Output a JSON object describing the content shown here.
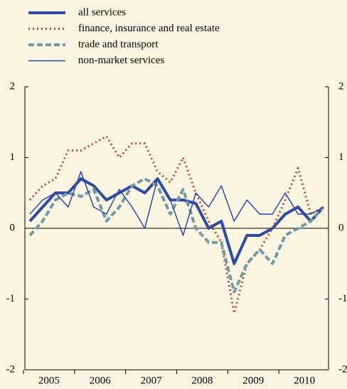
{
  "chart_data": {
    "type": "line",
    "categories": [
      "2005",
      null,
      null,
      null,
      "2006",
      null,
      null,
      null,
      "2007",
      null,
      null,
      null,
      "2008",
      null,
      null,
      null,
      "2009",
      null,
      null,
      null,
      "2010",
      null,
      null,
      null
    ],
    "series": [
      {
        "name": "all services",
        "color": "#2b4ba6",
        "line_width": 4,
        "dash": "none",
        "values": [
          0.1,
          0.3,
          0.5,
          0.5,
          0.7,
          0.6,
          0.4,
          0.5,
          0.6,
          0.5,
          0.7,
          0.4,
          0.4,
          0.35,
          0.0,
          0.1,
          -0.5,
          -0.1,
          -0.1,
          0.0,
          0.2,
          0.3,
          0.1,
          0.3
        ]
      },
      {
        "name": "finance, insurance and real estate",
        "color": "#c0433a",
        "line_width": 3,
        "dash": "2 4",
        "values": [
          0.4,
          0.6,
          0.7,
          1.1,
          1.1,
          1.2,
          1.3,
          1.0,
          1.2,
          1.2,
          0.8,
          0.65,
          1.0,
          0.5,
          0.1,
          -0.2,
          -1.2,
          -0.5,
          -0.3,
          0.0,
          0.4,
          0.85,
          0.2,
          0.3
        ]
      },
      {
        "name": "trade and transport",
        "color": "#6f9aa6",
        "line_width": 4,
        "dash": "8 4",
        "values": [
          -0.1,
          0.1,
          0.4,
          0.5,
          0.45,
          0.55,
          0.1,
          0.3,
          0.6,
          0.7,
          0.6,
          0.2,
          0.55,
          0.0,
          -0.2,
          -0.2,
          -0.9,
          -0.5,
          -0.3,
          -0.5,
          -0.1,
          0.0,
          0.1,
          0.3
        ]
      },
      {
        "name": "non-market services",
        "color": "#2b4ba6",
        "line_width": 1.5,
        "dash": "none",
        "values": [
          0.2,
          0.4,
          0.5,
          0.3,
          0.8,
          0.3,
          0.2,
          0.55,
          0.3,
          0.0,
          0.7,
          0.4,
          -0.1,
          0.5,
          0.3,
          0.6,
          0.1,
          0.4,
          0.2,
          0.2,
          0.5,
          0.2,
          0.2,
          0.3
        ]
      }
    ],
    "ylim": [
      -2,
      2
    ],
    "yticks": [
      -2,
      -1,
      0,
      1,
      2
    ],
    "grid": false,
    "legend": "top-left"
  }
}
